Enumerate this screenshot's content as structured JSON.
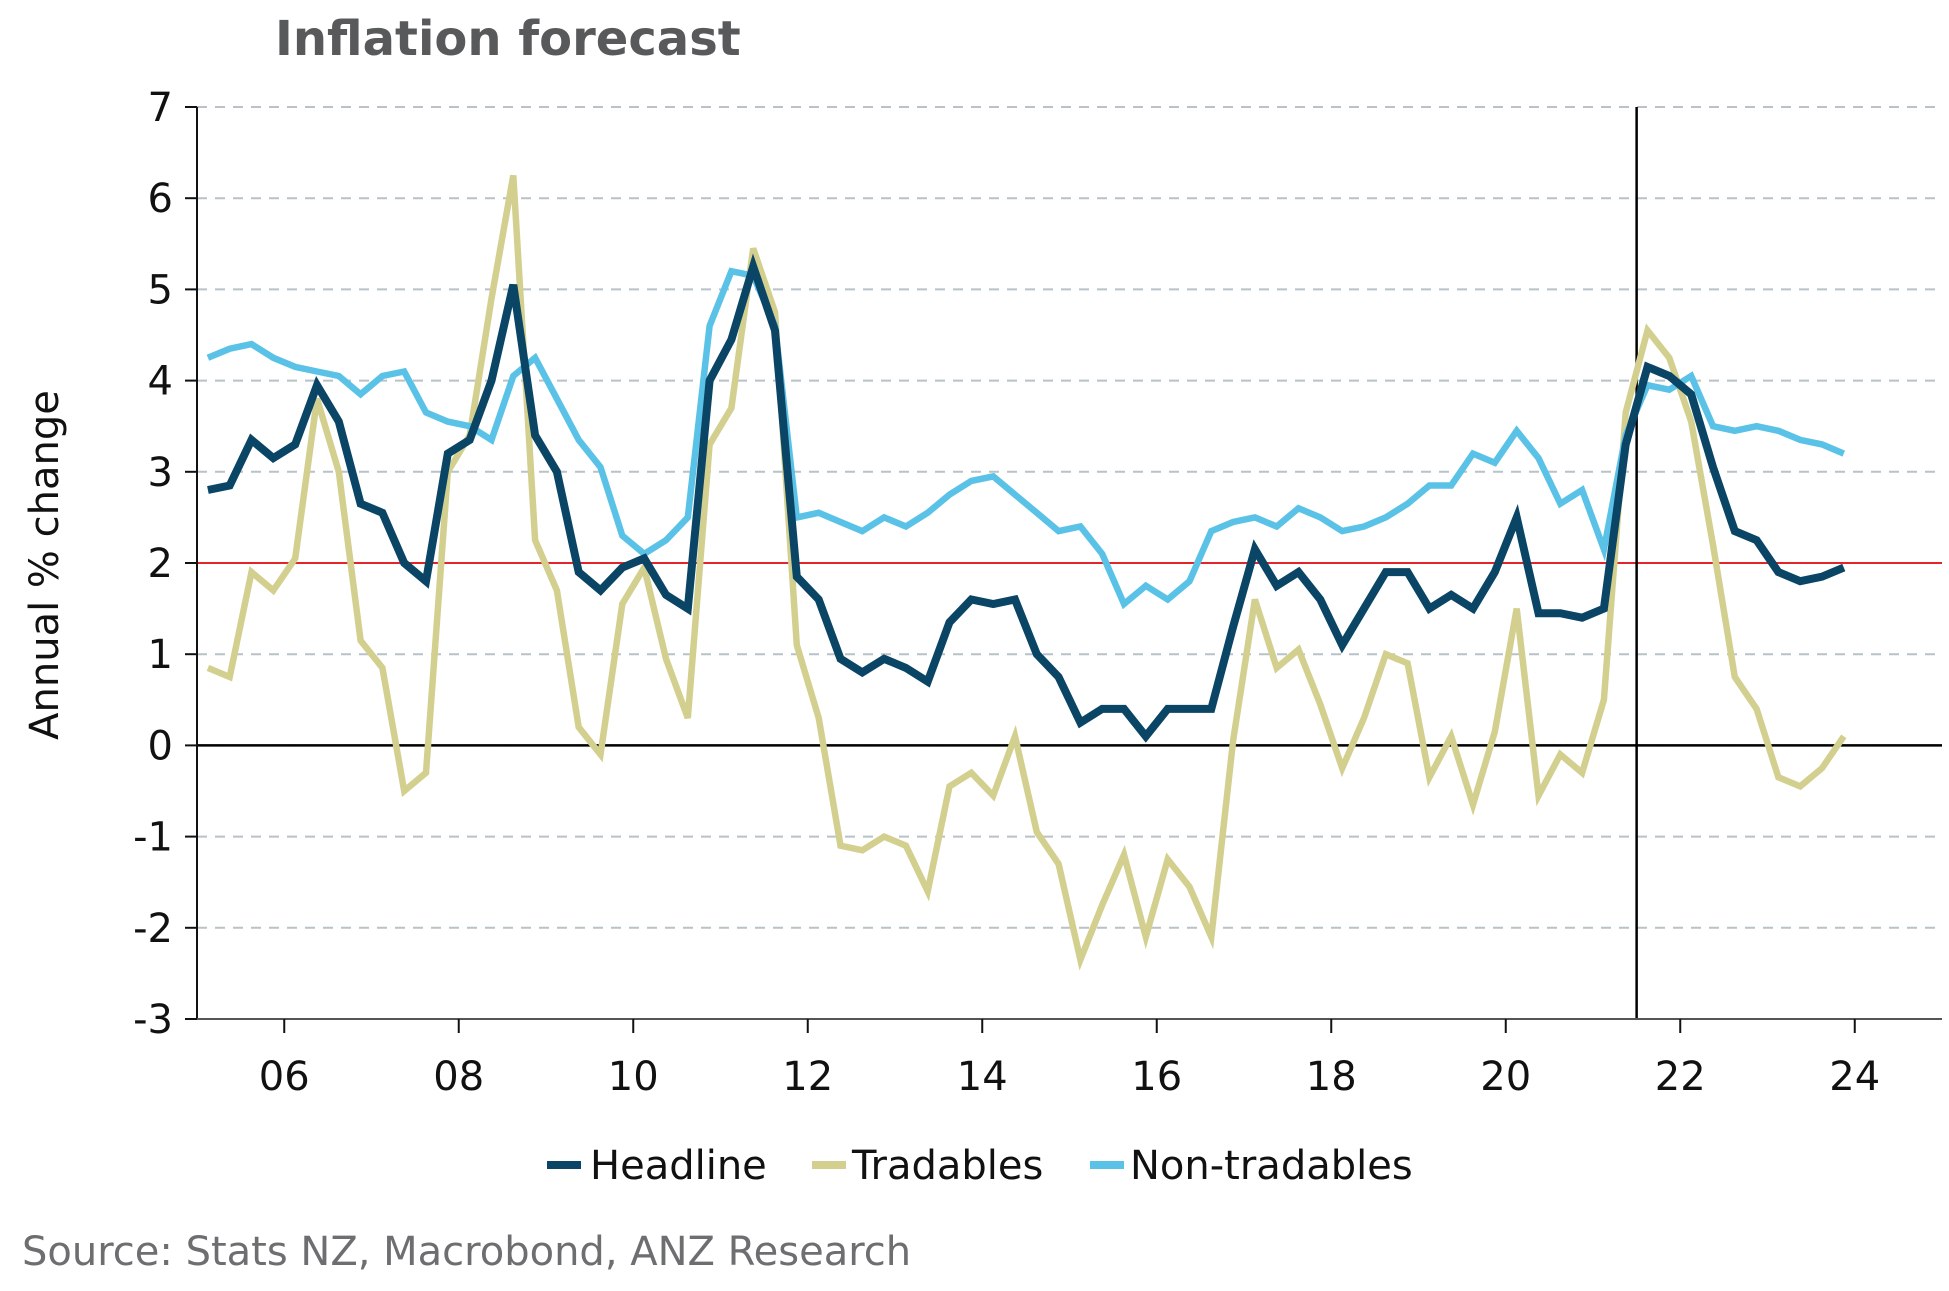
{
  "chart_data": {
    "type": "line",
    "title": "Inflation forecast",
    "xlabel": "",
    "ylabel": "Annual % change",
    "ylim": [
      -3,
      7
    ],
    "xlim": [
      2005.0,
      2025.0
    ],
    "yticks": [
      7,
      6,
      5,
      4,
      3,
      2,
      1,
      0,
      -1,
      -2,
      -3
    ],
    "ytick_labels": [
      "7",
      "6",
      "5",
      "4",
      "3",
      "2",
      "1",
      "0",
      "-1",
      "-2",
      "-3"
    ],
    "xticks": [
      2006,
      2008,
      2010,
      2012,
      2014,
      2016,
      2018,
      2020,
      2022,
      2024
    ],
    "xtick_labels": [
      "06",
      "08",
      "10",
      "12",
      "14",
      "16",
      "18",
      "20",
      "22",
      "24"
    ],
    "grid": "horizontal dashed",
    "reference_lines": [
      {
        "name": "target",
        "axis": "y",
        "value": 2,
        "color": "#e3242b"
      },
      {
        "name": "zero",
        "axis": "y",
        "value": 0,
        "color": "#000000"
      },
      {
        "name": "forecast-start",
        "axis": "x",
        "value": 2021.5,
        "color": "#000000"
      }
    ],
    "x_start": 2005.125,
    "x_step": 0.25,
    "series": [
      {
        "name": "Headline",
        "color": "#0b4566",
        "values": [
          2.8,
          2.85,
          3.35,
          3.15,
          3.3,
          3.95,
          3.55,
          2.65,
          2.55,
          2.0,
          1.8,
          3.2,
          3.35,
          4.0,
          5.05,
          3.4,
          3.0,
          1.9,
          1.7,
          1.95,
          2.05,
          1.65,
          1.5,
          4.0,
          4.45,
          5.25,
          4.55,
          1.85,
          1.6,
          0.95,
          0.8,
          0.95,
          0.85,
          0.7,
          1.35,
          1.6,
          1.55,
          1.6,
          1.0,
          0.75,
          0.25,
          0.4,
          0.4,
          0.1,
          0.4,
          0.4,
          0.4,
          1.3,
          2.15,
          1.75,
          1.9,
          1.6,
          1.1,
          1.5,
          1.9,
          1.9,
          1.5,
          1.65,
          1.5,
          1.9,
          2.5,
          1.45,
          1.45,
          1.4,
          1.5,
          3.3,
          4.15,
          4.05,
          3.85,
          3.05,
          2.35,
          2.25,
          1.9,
          1.8,
          1.85,
          1.95
        ]
      },
      {
        "name": "Tradables",
        "color": "#d3d08f",
        "values": [
          0.85,
          0.75,
          1.9,
          1.7,
          2.05,
          3.8,
          3.0,
          1.15,
          0.85,
          -0.5,
          -0.3,
          3.0,
          3.4,
          4.9,
          6.25,
          2.25,
          1.7,
          0.2,
          -0.1,
          1.55,
          1.95,
          0.95,
          0.3,
          3.3,
          3.7,
          5.45,
          4.75,
          1.1,
          0.3,
          -1.1,
          -1.15,
          -1.0,
          -1.1,
          -1.6,
          -0.45,
          -0.3,
          -0.55,
          0.1,
          -0.95,
          -1.3,
          -2.35,
          -1.75,
          -1.2,
          -2.1,
          -1.25,
          -1.55,
          -2.1,
          0.05,
          1.6,
          0.85,
          1.05,
          0.45,
          -0.25,
          0.3,
          1.0,
          0.9,
          -0.35,
          0.1,
          -0.65,
          0.15,
          1.5,
          -0.55,
          -0.1,
          -0.3,
          0.5,
          3.65,
          4.55,
          4.25,
          3.55,
          2.2,
          0.75,
          0.4,
          -0.35,
          -0.45,
          -0.25,
          0.1
        ]
      },
      {
        "name": "Non-tradables",
        "color": "#5bc2e7",
        "values": [
          4.25,
          4.35,
          4.4,
          4.25,
          4.15,
          4.1,
          4.05,
          3.85,
          4.05,
          4.1,
          3.65,
          3.55,
          3.5,
          3.35,
          4.05,
          4.25,
          3.8,
          3.35,
          3.05,
          2.3,
          2.1,
          2.25,
          2.5,
          4.6,
          5.2,
          5.15,
          4.6,
          2.5,
          2.55,
          2.45,
          2.35,
          2.5,
          2.4,
          2.55,
          2.75,
          2.9,
          2.95,
          2.75,
          2.55,
          2.35,
          2.4,
          2.1,
          1.55,
          1.75,
          1.6,
          1.8,
          2.35,
          2.45,
          2.5,
          2.4,
          2.6,
          2.5,
          2.35,
          2.4,
          2.5,
          2.65,
          2.85,
          2.85,
          3.2,
          3.1,
          3.45,
          3.15,
          2.65,
          2.8,
          2.15,
          3.4,
          3.95,
          3.9,
          4.05,
          3.5,
          3.45,
          3.5,
          3.45,
          3.35,
          3.3,
          3.2
        ]
      }
    ],
    "legend": {
      "placement": "bottom-center",
      "entries": [
        "Headline",
        "Tradables",
        "Non-tradables"
      ]
    },
    "source": "Source: Stats NZ, Macrobond, ANZ Research"
  }
}
